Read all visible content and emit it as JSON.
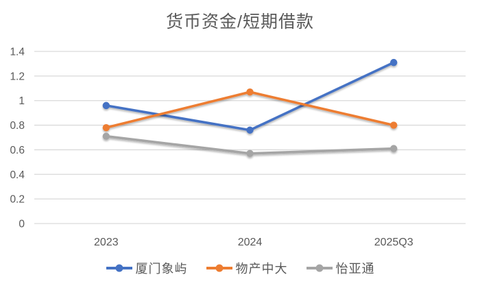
{
  "chart_data": {
    "type": "line",
    "title": "货币资金/短期借款",
    "categories": [
      "2023",
      "2024",
      "2025Q3"
    ],
    "series": [
      {
        "name": "厦门象屿",
        "color": "#4472C4",
        "values": [
          0.96,
          0.76,
          1.31
        ]
      },
      {
        "name": "物产中大",
        "color": "#ED7D31",
        "values": [
          0.78,
          1.07,
          0.8
        ]
      },
      {
        "name": "怡亚通",
        "color": "#A5A5A5",
        "values": [
          0.71,
          0.57,
          0.61
        ]
      }
    ],
    "ylim": [
      0,
      1.4
    ],
    "yticks": [
      1.4,
      1.2,
      1,
      0.8,
      0.6,
      0.4,
      0.2,
      0
    ],
    "ytick_labels": [
      "1.4",
      "1.2",
      "1",
      "0.8",
      "0.6",
      "0.4",
      "0.2",
      "0"
    ],
    "xlabel": "",
    "ylabel": "",
    "grid": true,
    "legend_position": "bottom"
  },
  "colors": {
    "background": "#FFFFFF",
    "text": "#595959",
    "gridline": "#D9D9D9"
  }
}
